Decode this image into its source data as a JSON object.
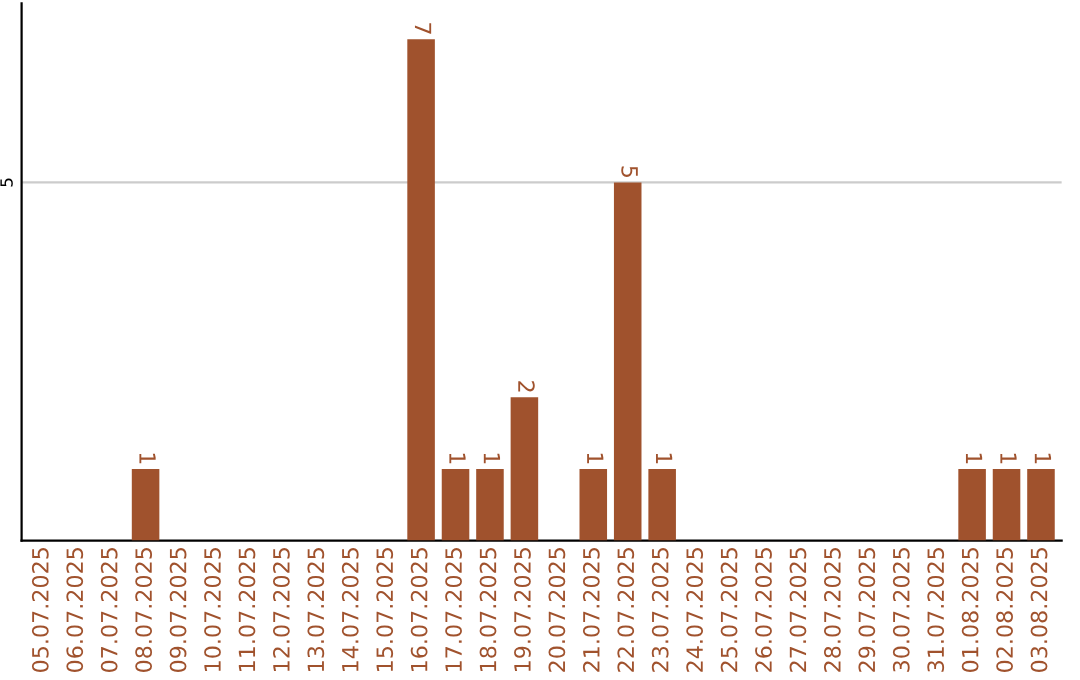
{
  "chart_data": {
    "type": "bar",
    "categories": [
      "05.07.2025",
      "06.07.2025",
      "07.07.2025",
      "08.07.2025",
      "09.07.2025",
      "10.07.2025",
      "11.07.2025",
      "12.07.2025",
      "13.07.2025",
      "14.07.2025",
      "15.07.2025",
      "16.07.2025",
      "17.07.2025",
      "18.07.2025",
      "19.07.2025",
      "20.07.2025",
      "21.07.2025",
      "22.07.2025",
      "23.07.2025",
      "24.07.2025",
      "25.07.2025",
      "26.07.2025",
      "27.07.2025",
      "28.07.2025",
      "29.07.2025",
      "30.07.2025",
      "31.07.2025",
      "01.08.2025",
      "02.08.2025",
      "03.08.2025"
    ],
    "values": [
      0,
      0,
      0,
      1,
      0,
      0,
      0,
      0,
      0,
      0,
      0,
      7,
      1,
      1,
      2,
      0,
      1,
      5,
      1,
      0,
      0,
      0,
      0,
      0,
      0,
      0,
      0,
      1,
      1,
      1
    ],
    "value_labels": [
      null,
      null,
      null,
      "1",
      null,
      null,
      null,
      null,
      null,
      null,
      null,
      "7",
      "1",
      "1",
      "2",
      null,
      "1",
      "5",
      "1",
      null,
      null,
      null,
      null,
      null,
      null,
      null,
      null,
      "1",
      "1",
      "1"
    ],
    "color": "#a0522d",
    "ylim": [
      0,
      7.5
    ],
    "yticks": [
      5
    ],
    "grid": "y"
  }
}
